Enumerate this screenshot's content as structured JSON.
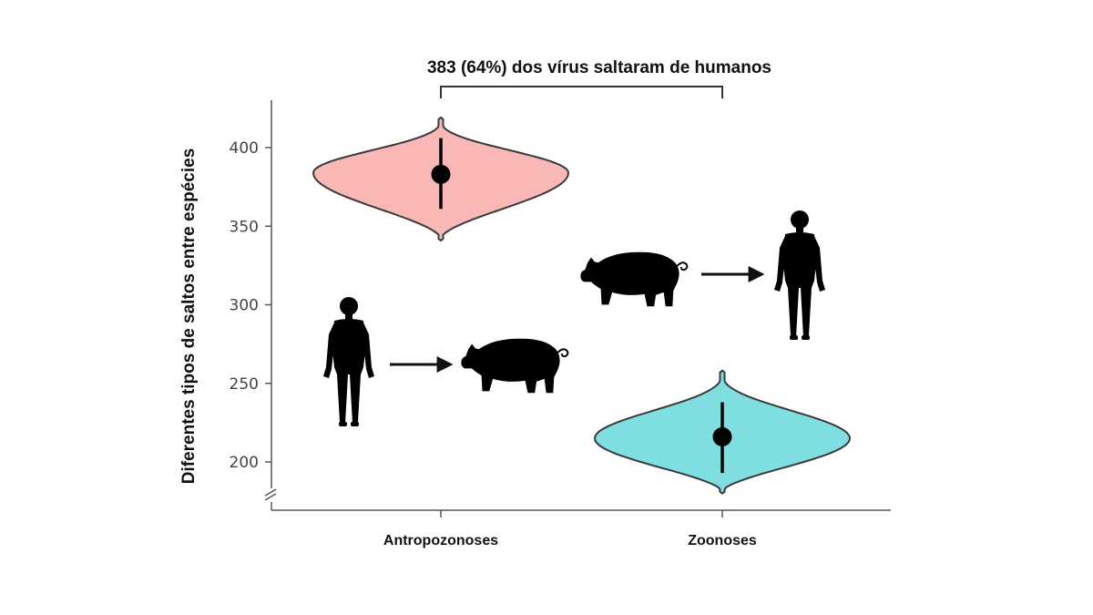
{
  "chart_data": {
    "type": "violin",
    "title": "383 (64%) dos vírus saltaram de humanos",
    "ylabel": "Diferentes tipos de saltos entre espécies",
    "xlabel": "",
    "categories": [
      "Antropozonoses",
      "Zoonoses"
    ],
    "yticks": [
      200,
      250,
      300,
      350,
      400
    ],
    "ylim": [
      185,
      420
    ],
    "axis_break": true,
    "grid": false,
    "series": [
      {
        "category": "Antropozonoses",
        "median": 383,
        "ci": [
          361,
          406
        ],
        "min": 342,
        "max": 418,
        "mode": 384,
        "color": "#f9b8b6"
      },
      {
        "category": "Zoonoses",
        "median": 216,
        "ci": [
          193,
          238
        ],
        "min": 181,
        "max": 257,
        "mode": 215,
        "color": "#7fdfe0"
      }
    ],
    "annotations": [
      {
        "type": "bracket",
        "from": "Antropozonoses",
        "to": "Zoonoses",
        "text_ref": "title"
      }
    ],
    "icons": [
      {
        "name": "human-icon",
        "flow": "human-to-pig"
      },
      {
        "name": "pig-icon",
        "flow": "human-to-pig"
      },
      {
        "name": "pig-icon",
        "flow": "pig-to-human"
      },
      {
        "name": "human-icon",
        "flow": "pig-to-human"
      }
    ]
  }
}
